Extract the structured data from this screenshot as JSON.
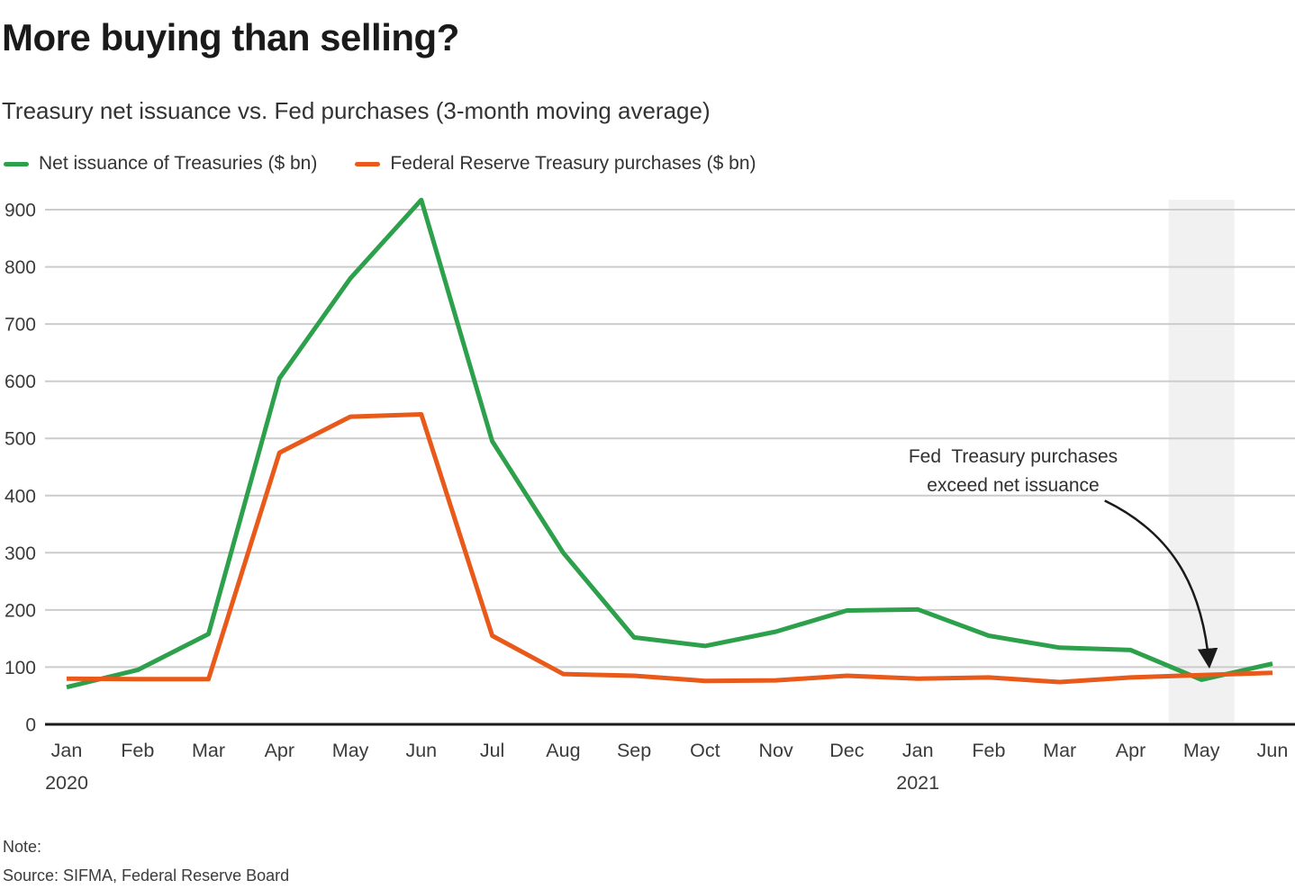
{
  "page": {
    "title": "More buying than selling?",
    "subtitle": "Treasury net issuance vs. Fed purchases (3-month moving average)",
    "note_label": "Note:",
    "source": "Source: SIFMA, Federal Reserve Board"
  },
  "legend": {
    "items": [
      {
        "id": "net-issuance",
        "label": "Net issuance of Treasuries ($ bn)",
        "color": "#2ca04a"
      },
      {
        "id": "fed-purchases",
        "label": "Federal Reserve Treasury purchases ($ bn)",
        "color": "#e8591a"
      }
    ]
  },
  "chart_data": {
    "type": "line",
    "title": "More buying than selling?",
    "subtitle": "Treasury net issuance vs. Fed purchases (3-month moving average)",
    "categories": [
      "Jan",
      "Feb",
      "Mar",
      "Apr",
      "May",
      "Jun",
      "Jul",
      "Aug",
      "Sep",
      "Oct",
      "Nov",
      "Dec",
      "Jan",
      "Feb",
      "Mar",
      "Apr",
      "May",
      "Jun"
    ],
    "year_labels": [
      {
        "index": 0,
        "label": "2020"
      },
      {
        "index": 12,
        "label": "2021"
      }
    ],
    "series": [
      {
        "name": "Net issuance of Treasuries ($ bn)",
        "color": "#2ca04a",
        "values": [
          65,
          95,
          158,
          605,
          780,
          917,
          495,
          300,
          152,
          137,
          162,
          199,
          201,
          155,
          134,
          130,
          78,
          106
        ]
      },
      {
        "name": "Federal Reserve Treasury purchases ($ bn)",
        "color": "#e8591a",
        "values": [
          80,
          79,
          79,
          475,
          538,
          542,
          155,
          88,
          85,
          76,
          77,
          85,
          80,
          82,
          74,
          82,
          86,
          90
        ]
      }
    ],
    "ylabel": "",
    "xlabel": "",
    "ylim": [
      0,
      950
    ],
    "yticks": [
      0,
      100,
      200,
      300,
      400,
      500,
      600,
      700,
      800,
      900
    ],
    "grid": true,
    "legend_position": "top",
    "highlight_band": {
      "category_index": 16,
      "fill": "#f1f1f1"
    },
    "annotation": {
      "text": "Fed  Treasury purchases\nexceed net issuance",
      "target_category_index": 16
    },
    "grid_color": "#cccccc",
    "axis_color": "#1a1a1a",
    "tick_label_color": "#3b3b3b"
  }
}
